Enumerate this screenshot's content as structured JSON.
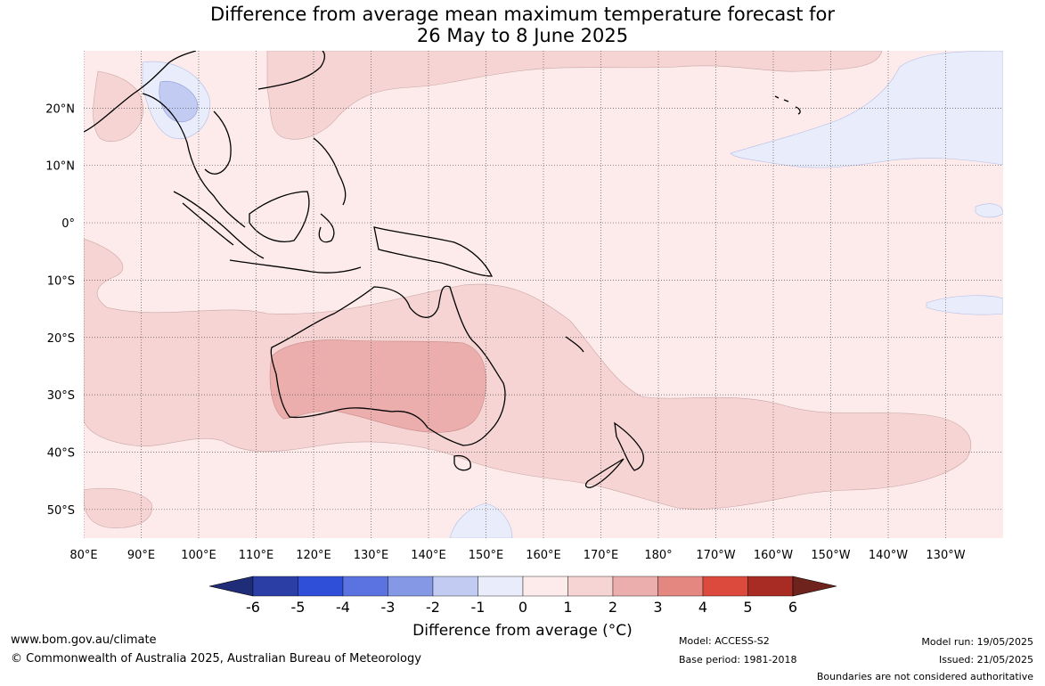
{
  "title": {
    "line1": "Difference from average mean maximum temperature forecast for",
    "line2": "26 May to 8 June 2025"
  },
  "axes": {
    "lon_labels": [
      "80°E",
      "90°E",
      "100°E",
      "110°E",
      "120°E",
      "130°E",
      "140°E",
      "150°E",
      "160°E",
      "170°E",
      "180°",
      "170°W",
      "160°W",
      "150°W",
      "140°W",
      "130°W"
    ],
    "lon_values": [
      80,
      90,
      100,
      110,
      120,
      130,
      140,
      150,
      160,
      170,
      180,
      190,
      200,
      210,
      220,
      230
    ],
    "lat_labels": [
      "20°N",
      "10°N",
      "0°",
      "10°S",
      "20°S",
      "30°S",
      "40°S",
      "50°S"
    ],
    "lat_values": [
      20,
      10,
      0,
      -10,
      -20,
      -30,
      -40,
      -50
    ],
    "lon_range": [
      80,
      240
    ],
    "lat_range": [
      -55,
      30
    ],
    "grid": "dotted"
  },
  "colorbar": {
    "title": "Difference from average (°C)",
    "tick_labels": [
      "-6",
      "-5",
      "-4",
      "-3",
      "-2",
      "-1",
      "0",
      "1",
      "2",
      "3",
      "4",
      "5",
      "6"
    ],
    "bins": [
      {
        "range": "-6 to -5",
        "color": "#2a3ea6"
      },
      {
        "range": "-5 to -4",
        "color": "#2f4fd8"
      },
      {
        "range": "-4 to -3",
        "color": "#5a73e0"
      },
      {
        "range": "-3 to -2",
        "color": "#8598e6"
      },
      {
        "range": "-2 to -1",
        "color": "#c2cbf2"
      },
      {
        "range": "-1 to 0",
        "color": "#e9ecfb"
      },
      {
        "range": "0 to 1",
        "color": "#fcebea"
      },
      {
        "range": "1 to 2",
        "color": "#f5d4d3"
      },
      {
        "range": "2 to 3",
        "color": "#ecaeac"
      },
      {
        "range": "3 to 4",
        "color": "#e38780"
      },
      {
        "range": "4 to 5",
        "color": "#db4a3d"
      },
      {
        "range": "5 to 6",
        "color": "#a82c24"
      }
    ],
    "under_color": "#1f2c78",
    "over_color": "#6e241c"
  },
  "footer": {
    "website": "www.bom.gov.au/climate",
    "copyright": "© Commonwealth of Australia 2025, Australian Bureau of Meteorology",
    "model": "Model: ACCESS-S2",
    "base_period": "Base period: 1981-2018",
    "model_run": "Model run: 19/05/2025",
    "issued": "Issued: 21/05/2025",
    "disclaimer": "Boundaries are not considered authoritative"
  }
}
